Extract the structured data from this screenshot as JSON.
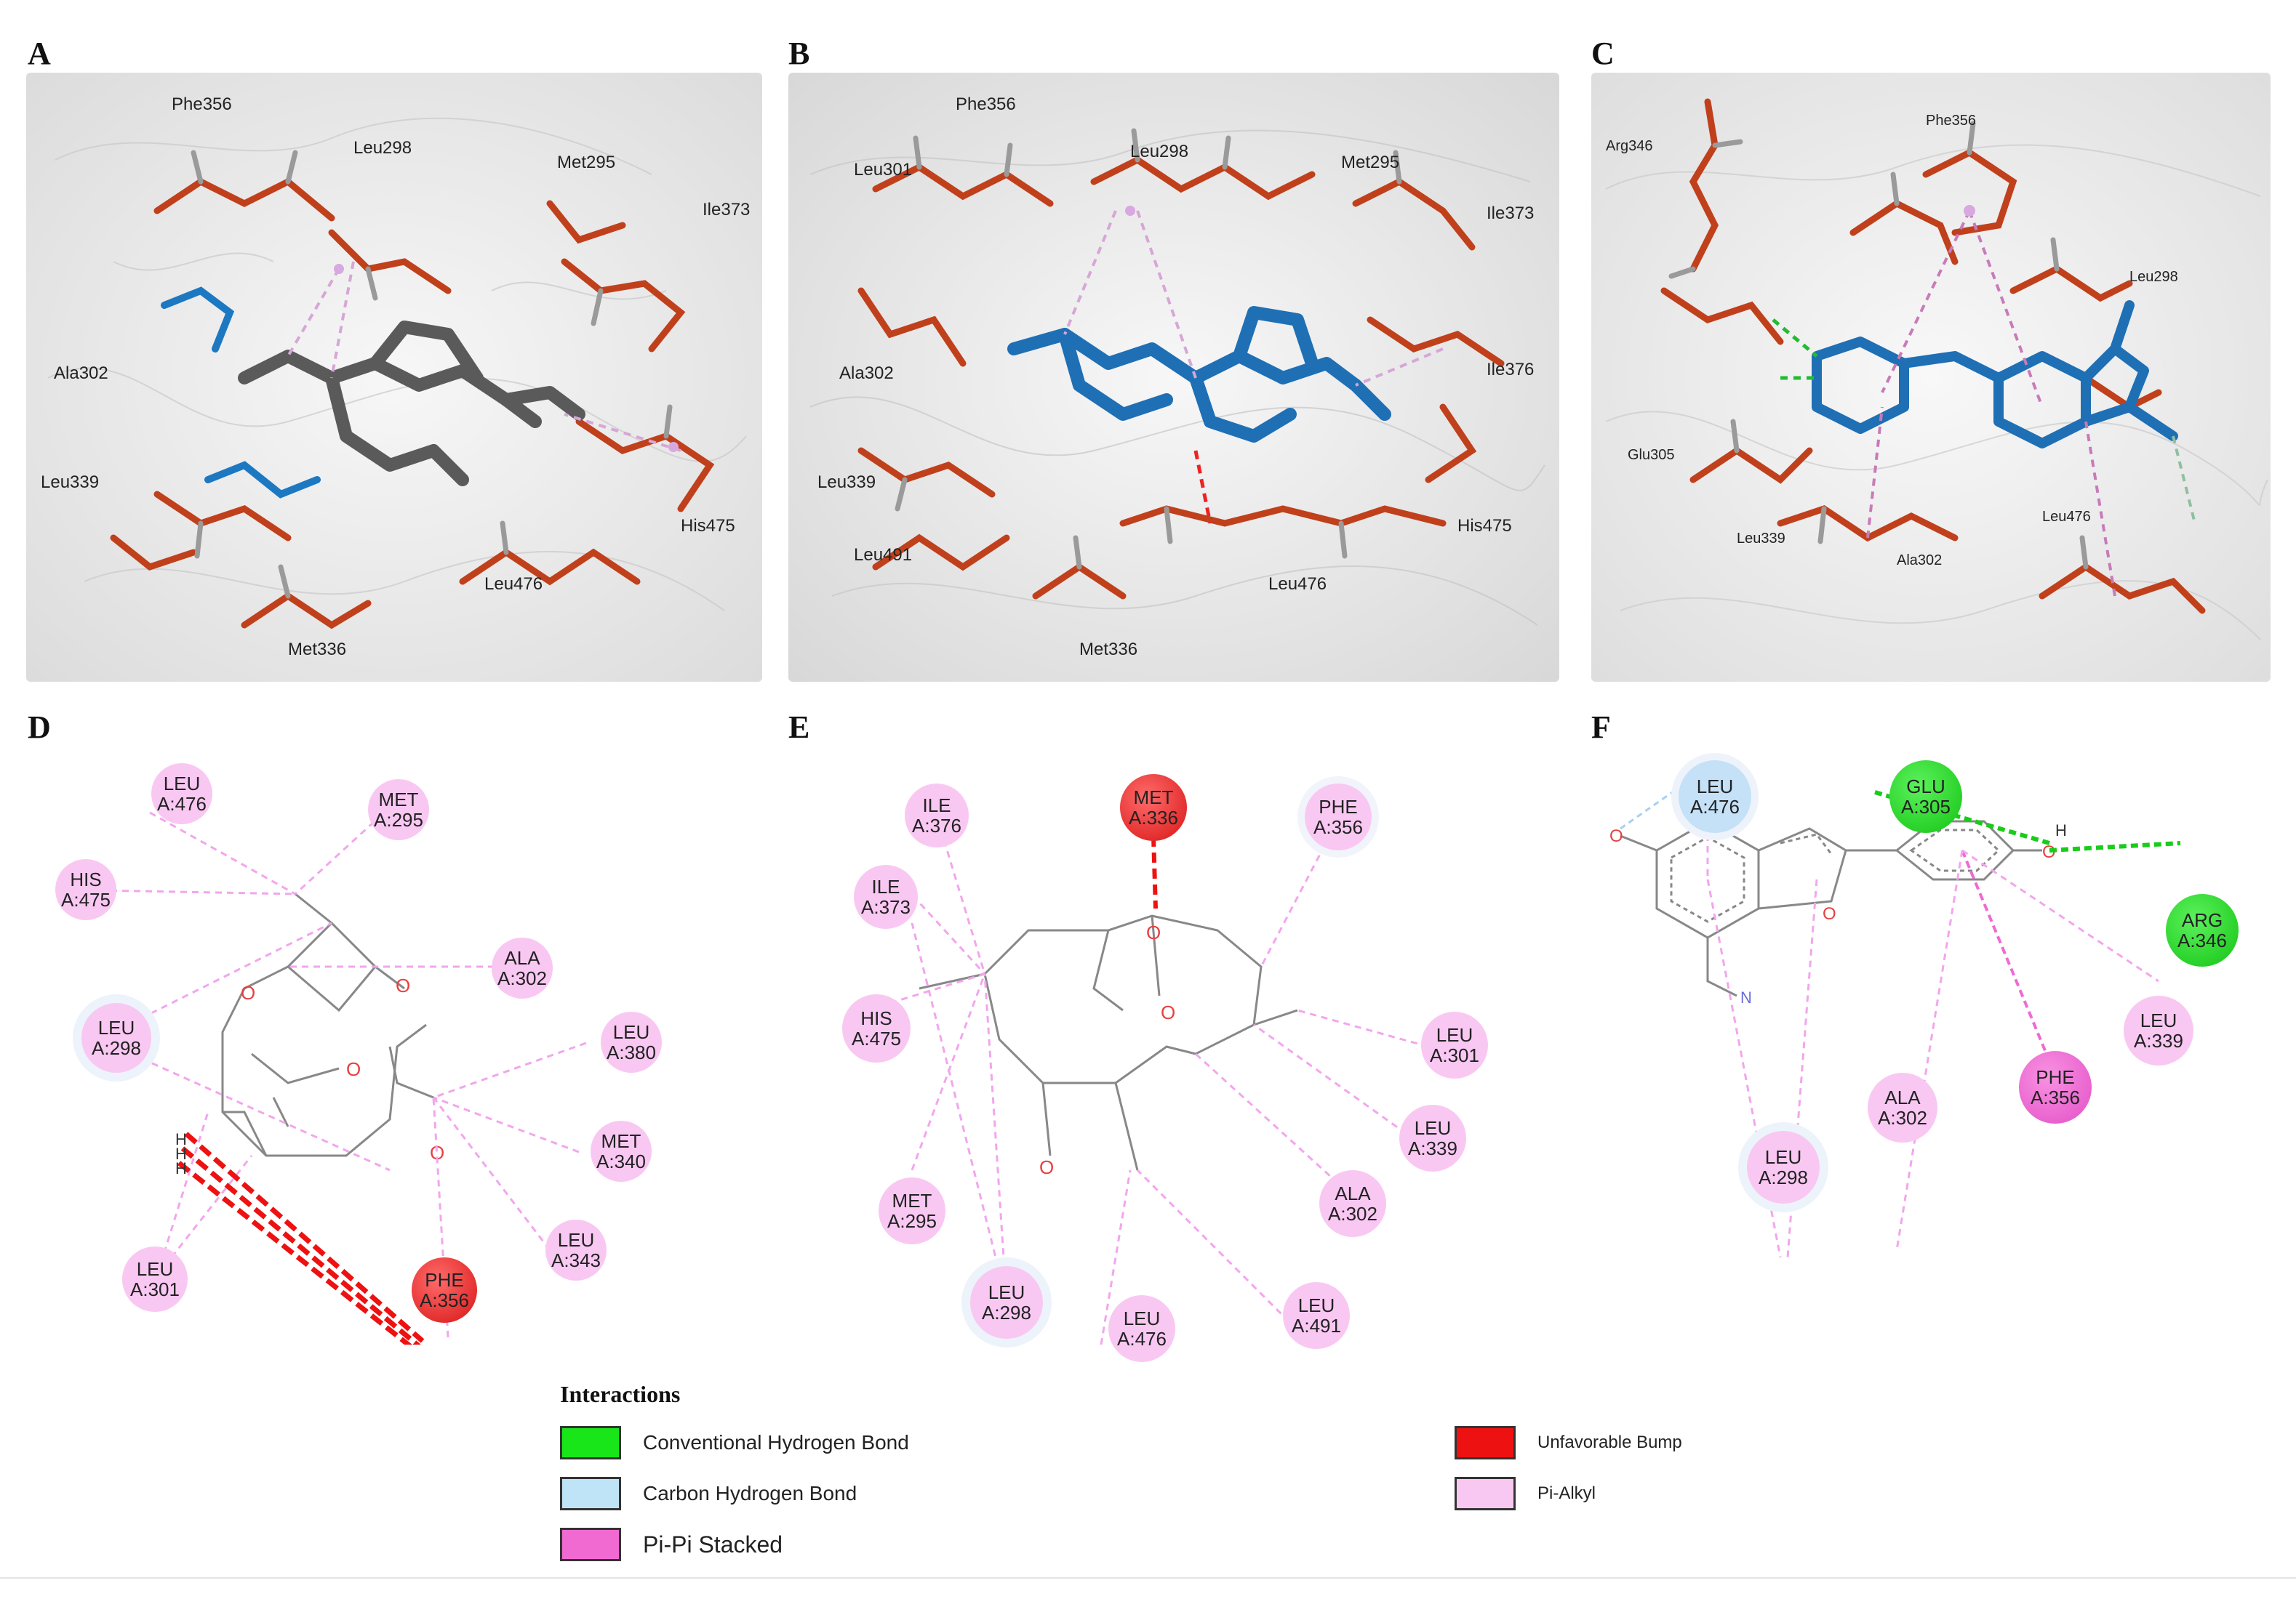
{
  "panels": {
    "A": {
      "letter": "A",
      "labels": [
        "Phe356",
        "Leu298",
        "Met295",
        "Ile373",
        "Ala302",
        "Leu339",
        "Leu476",
        "His475",
        "Met336"
      ],
      "ligand_color": "#5a5a5a"
    },
    "B": {
      "letter": "B",
      "labels": [
        "Phe356",
        "Leu301",
        "Leu298",
        "Met295",
        "Ile373",
        "Ala302",
        "Ile376",
        "Leu339",
        "Leu491",
        "His475",
        "Leu476",
        "Met336"
      ],
      "ligand_color": "#1f6fb5"
    },
    "C": {
      "letter": "C",
      "labels": [
        "Arg346",
        "Phe356",
        "Leu298",
        "Glu305",
        "Leu476",
        "Leu339",
        "Ala302"
      ],
      "ligand_color": "#1f6fb5"
    },
    "D": {
      "letter": "D",
      "residues": [
        {
          "name": "LEU",
          "id": "A:476",
          "type": "pi-alkyl"
        },
        {
          "name": "MET",
          "id": "A:295",
          "type": "pi-alkyl"
        },
        {
          "name": "HIS",
          "id": "A:475",
          "type": "pi-alkyl"
        },
        {
          "name": "ALA",
          "id": "A:302",
          "type": "pi-alkyl"
        },
        {
          "name": "LEU",
          "id": "A:298",
          "type": "pi-alkyl"
        },
        {
          "name": "LEU",
          "id": "A:380",
          "type": "pi-alkyl"
        },
        {
          "name": "MET",
          "id": "A:340",
          "type": "pi-alkyl"
        },
        {
          "name": "LEU",
          "id": "A:343",
          "type": "pi-alkyl"
        },
        {
          "name": "LEU",
          "id": "A:301",
          "type": "pi-alkyl"
        },
        {
          "name": "PHE",
          "id": "A:356",
          "type": "bump"
        }
      ],
      "atom_h": "H"
    },
    "E": {
      "letter": "E",
      "residues": [
        {
          "name": "ILE",
          "id": "A:376",
          "type": "pi-alkyl"
        },
        {
          "name": "MET",
          "id": "A:336",
          "type": "bump"
        },
        {
          "name": "PHE",
          "id": "A:356",
          "type": "pi-alkyl"
        },
        {
          "name": "ILE",
          "id": "A:373",
          "type": "pi-alkyl"
        },
        {
          "name": "HIS",
          "id": "A:475",
          "type": "pi-alkyl"
        },
        {
          "name": "LEU",
          "id": "A:301",
          "type": "pi-alkyl"
        },
        {
          "name": "LEU",
          "id": "A:339",
          "type": "pi-alkyl"
        },
        {
          "name": "MET",
          "id": "A:295",
          "type": "pi-alkyl"
        },
        {
          "name": "ALA",
          "id": "A:302",
          "type": "pi-alkyl"
        },
        {
          "name": "LEU",
          "id": "A:298",
          "type": "pi-alkyl"
        },
        {
          "name": "LEU",
          "id": "A:476",
          "type": "pi-alkyl"
        },
        {
          "name": "LEU",
          "id": "A:491",
          "type": "pi-alkyl"
        }
      ]
    },
    "F": {
      "letter": "F",
      "residues": [
        {
          "name": "LEU",
          "id": "A:476",
          "type": "carbon-hbond"
        },
        {
          "name": "GLU",
          "id": "A:305",
          "type": "hbond"
        },
        {
          "name": "ARG",
          "id": "A:346",
          "type": "hbond"
        },
        {
          "name": "LEU",
          "id": "A:339",
          "type": "pi-alkyl"
        },
        {
          "name": "PHE",
          "id": "A:356",
          "type": "pi-pi"
        },
        {
          "name": "ALA",
          "id": "A:302",
          "type": "pi-alkyl"
        },
        {
          "name": "LEU",
          "id": "A:298",
          "type": "pi-alkyl"
        }
      ],
      "atom_h": "H",
      "atom_n": "N"
    }
  },
  "legend": {
    "title": "Interactions",
    "items": [
      {
        "label": "Conventional Hydrogen Bond",
        "color": "#19e619"
      },
      {
        "label": "Carbon Hydrogen Bond",
        "color": "#bfe3f7"
      },
      {
        "label": "Pi-Pi Stacked",
        "color": "#f06ad2"
      },
      {
        "label": "Unfavorable Bump",
        "color": "#ee1111"
      },
      {
        "label": "Pi-Alkyl",
        "color": "#f9c8f2"
      }
    ]
  },
  "colors": {
    "pi_alkyl": "#f9c8f2",
    "bump": "#ee2222",
    "hbond": "#19dd19",
    "carbon_hbond": "#c4e1f7",
    "pi_pi": "#ef6ad4",
    "residue_stick": "#c0401c"
  }
}
